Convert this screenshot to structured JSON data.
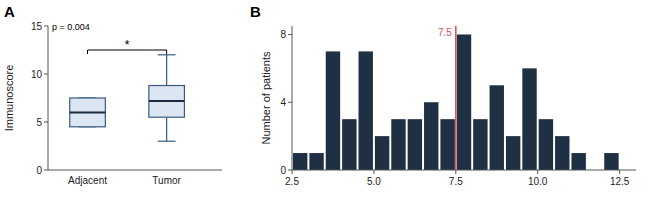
{
  "chart_data": [
    {
      "type": "box",
      "panel_label": "A",
      "ylabel": "Immunoscore",
      "categories": [
        "Adjacent",
        "Tumor"
      ],
      "boxes": [
        {
          "q1": 4.5,
          "median": 6.0,
          "q3": 7.5,
          "whisker_low": 4.5,
          "whisker_high": 7.5
        },
        {
          "q1": 5.5,
          "median": 7.2,
          "q3": 8.8,
          "whisker_low": 3.0,
          "whisker_high": 12.0
        }
      ],
      "pvalue_text": "p = 0.004",
      "sig_text": "*",
      "bracket_y": 12.5,
      "ylim": [
        0,
        15
      ],
      "yticks": [
        0,
        5,
        10,
        15
      ],
      "grid": false
    },
    {
      "type": "histogram",
      "panel_label": "B",
      "ylabel": "Number of patients",
      "bins": [
        2.5,
        3.0,
        3.5,
        4.0,
        4.5,
        5.0,
        5.5,
        6.0,
        6.5,
        7.0,
        7.5,
        8.0,
        8.5,
        9.0,
        9.5,
        10.0,
        10.5,
        11.0,
        11.5,
        12.0,
        12.5
      ],
      "values": [
        1,
        1,
        7,
        3,
        7,
        2,
        3,
        3,
        4,
        3,
        8,
        3,
        5,
        2,
        6,
        3,
        2,
        1,
        0,
        1
      ],
      "color": "#1f3044",
      "reference_line": {
        "value": 7.5,
        "label": "7.5",
        "color": "#d94f4f"
      },
      "xlim": [
        2.5,
        13.0
      ],
      "ylim": [
        0,
        8.5
      ],
      "yticks": [
        0,
        4,
        8
      ],
      "xticks": [
        2.5,
        {
          "value": 5.0,
          "label": "5.0"
        },
        7.5,
        {
          "value": 10.0,
          "label": "10.0"
        },
        12.5
      ],
      "grid": false
    }
  ]
}
